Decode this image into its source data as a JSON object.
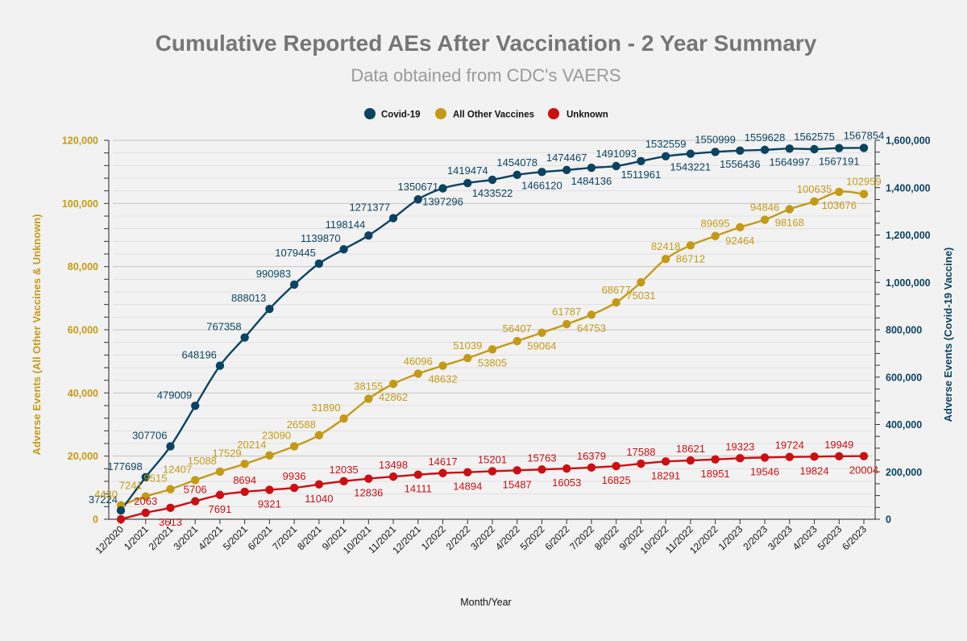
{
  "colors": {
    "covid": "#0b4361",
    "other": "#c49a15",
    "unknown": "#cc0f12",
    "background": "#f2f2f2",
    "grid": "#d7d7d7"
  },
  "chart_data": {
    "type": "line",
    "title": "Cumulative Reported AEs After Vaccination - 2 Year Summary",
    "subtitle": "Data obtained from CDC's VAERS",
    "xlabel": "Month/Year",
    "ylabel_left": "Adverse Events (All Other Vaccines & Unknown)",
    "ylabel_right": "Adverse Events (Covid-19 Vaccine)",
    "legend_position": "top-center",
    "grid": true,
    "categories": [
      "12/2020",
      "1/2021",
      "2/2021",
      "3/2021",
      "4/2021",
      "5/2021",
      "6/2021",
      "7/2021",
      "8/2021",
      "9/2021",
      "10/2021",
      "11/2021",
      "12/2021",
      "1/2022",
      "2/2022",
      "3/2022",
      "4/2022",
      "5/2022",
      "6/2022",
      "7/2022",
      "8/2022",
      "9/2022",
      "10/2022",
      "11/2022",
      "12/2022",
      "1/2023",
      "2/2023",
      "3/2023",
      "4/2023",
      "5/2023",
      "6/2023"
    ],
    "left_axis": {
      "min": 0,
      "max": 120000,
      "step": 20000,
      "tick_labels": [
        "0",
        "20,000",
        "40,000",
        "60,000",
        "80,000",
        "100,000",
        "120,000"
      ]
    },
    "right_axis": {
      "min": 0,
      "max": 1600000,
      "step": 200000,
      "tick_labels": [
        "0",
        "200,000",
        "400,000",
        "600,000",
        "800,000",
        "1,000,000",
        "1,200,000",
        "1,400,000",
        "1,600,000"
      ]
    },
    "series": [
      {
        "name": "Covid-19",
        "axis": "right",
        "color": "#0b4361",
        "values": [
          37224,
          177698,
          307706,
          479009,
          648196,
          767358,
          888013,
          990983,
          1079445,
          1139870,
          1198144,
          1271377,
          1350671,
          1397296,
          1419474,
          1433522,
          1454078,
          1466120,
          1474467,
          1484136,
          1491093,
          1511961,
          1532559,
          1543221,
          1550999,
          1556436,
          1559628,
          1564997,
          1562575,
          1567191,
          1567854
        ],
        "labels": [
          "37224",
          "177698",
          "307706",
          "479009",
          "648196",
          "767358",
          "888013",
          "990983",
          "1079445",
          "1139870",
          "1198144",
          "1271377",
          "1350671",
          "1397296",
          "1419474",
          "1433522",
          "1454078",
          "1466120",
          "1474467",
          "1484136",
          "1491093",
          "1511961",
          "1532559",
          "1543221",
          "1550999",
          "1556436",
          "1559628",
          "1564997",
          "1562575",
          "1567191",
          "1567854"
        ]
      },
      {
        "name": "All Other Vaccines",
        "axis": "left",
        "color": "#c49a15",
        "values": [
          4430,
          7241,
          9515,
          12407,
          15088,
          17529,
          20214,
          23090,
          26588,
          31890,
          38155,
          42862,
          46096,
          48632,
          51039,
          53805,
          56407,
          59064,
          61787,
          64753,
          68677,
          75031,
          82418,
          86712,
          89695,
          92464,
          94846,
          98168,
          100635,
          103676,
          102959
        ],
        "labels": [
          "4430",
          "7241",
          "9515",
          "12407",
          "15088",
          "17529",
          "20214",
          "23090",
          "26588",
          "31890",
          "38155",
          "42862",
          "46096",
          "48632",
          "51039",
          "53805",
          "56407",
          "59064",
          "61787",
          "64753",
          "68677",
          "75031",
          "82418",
          "86712",
          "89695",
          "92464",
          "94846",
          "98168",
          "100635",
          "103676",
          "102959"
        ]
      },
      {
        "name": "Unknown",
        "axis": "left",
        "color": "#cc0f12",
        "values": [
          0,
          2063,
          3613,
          5706,
          7691,
          8694,
          9321,
          9936,
          11040,
          12035,
          12836,
          13498,
          14111,
          14617,
          14894,
          15201,
          15487,
          15763,
          16053,
          16379,
          16825,
          17588,
          18291,
          18621,
          18951,
          19323,
          19546,
          19724,
          19824,
          19949,
          20004
        ],
        "labels": [
          "",
          "2063",
          "3613",
          "5706",
          "7691",
          "8694",
          "9321",
          "9936",
          "11040",
          "12035",
          "12836",
          "13498",
          "14111",
          "14617",
          "14894",
          "15201",
          "15487",
          "15763",
          "16053",
          "16379",
          "16825",
          "17588",
          "18291",
          "18621",
          "18951",
          "19323",
          "19546",
          "19724",
          "19824",
          "19949",
          "20004"
        ]
      }
    ]
  }
}
